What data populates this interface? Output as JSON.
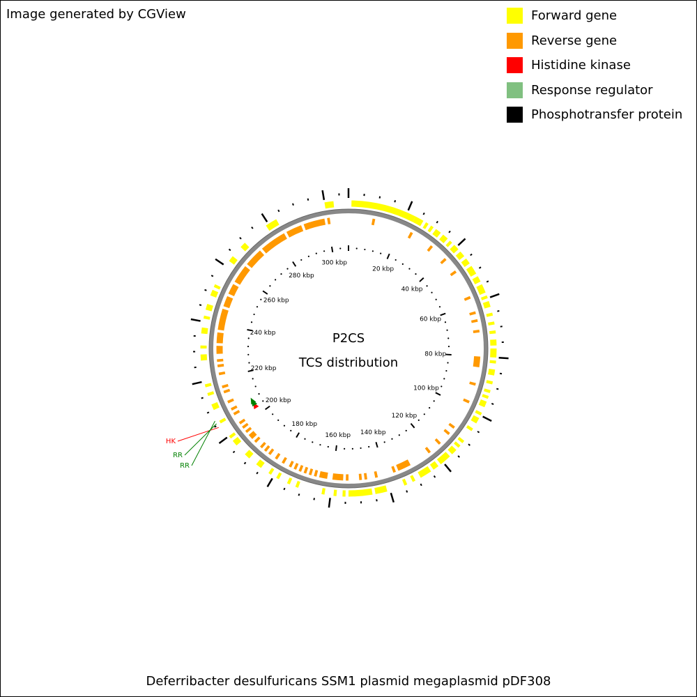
{
  "credit": "Image generated by CGView",
  "legend": [
    {
      "label": "Forward gene",
      "color": "#ffff00"
    },
    {
      "label": "Reverse gene",
      "color": "#ff9900"
    },
    {
      "label": "Histidine kinase",
      "color": "#ff0000"
    },
    {
      "label": "Response regulator",
      "color": "#80c080"
    },
    {
      "label": "Phosphotransfer protein",
      "color": "#000000"
    }
  ],
  "center_title": "P2CS",
  "center_subtitle": "TCS distribution",
  "organism": "Deferribacter desulfuricans SSM1 plasmid megaplasmid pDF308",
  "genome_length_kbp": 308,
  "ruler_labels": [
    "20 kbp",
    "40 kbp",
    "60 kbp",
    "80 kbp",
    "100 kbp",
    "120 kbp",
    "140 kbp",
    "160 kbp",
    "180 kbp",
    "200 kbp",
    "220 kbp",
    "240 kbp",
    "260 kbp",
    "280 kbp",
    "300 kbp"
  ],
  "callouts": [
    {
      "label": "HK",
      "color": "#ff0000"
    },
    {
      "label": "RR",
      "color": "#008000"
    },
    {
      "label": "RR",
      "color": "#008000"
    }
  ],
  "forward_genes_kbp": [
    [
      1,
      23
    ],
    [
      23,
      26
    ],
    [
      27,
      28
    ],
    [
      29,
      30
    ],
    [
      31,
      33
    ],
    [
      34,
      36
    ],
    [
      37,
      38
    ],
    [
      39,
      41
    ],
    [
      42,
      44
    ],
    [
      45,
      47
    ],
    [
      48,
      51
    ],
    [
      52,
      54
    ],
    [
      55,
      58
    ],
    [
      59,
      60
    ],
    [
      61,
      63
    ],
    [
      65,
      66
    ],
    [
      68,
      69
    ],
    [
      71,
      72
    ],
    [
      74,
      76
    ],
    [
      77,
      80
    ],
    [
      81,
      82
    ],
    [
      84,
      86
    ],
    [
      88,
      89
    ],
    [
      91,
      92
    ],
    [
      93,
      94
    ],
    [
      95,
      97
    ],
    [
      99,
      100
    ],
    [
      101,
      103
    ],
    [
      105,
      106
    ],
    [
      110,
      111
    ],
    [
      112,
      113
    ],
    [
      114,
      116
    ],
    [
      117,
      121
    ],
    [
      122,
      124
    ],
    [
      125,
      129
    ],
    [
      131,
      132
    ],
    [
      134,
      135
    ],
    [
      141,
      145
    ],
    [
      146,
      154
    ],
    [
      155,
      156
    ],
    [
      158,
      159
    ],
    [
      162,
      163
    ],
    [
      171,
      172
    ],
    [
      174,
      175
    ],
    [
      178,
      179
    ],
    [
      181,
      182
    ],
    [
      185,
      187
    ],
    [
      190,
      192
    ],
    [
      196,
      198
    ],
    [
      199,
      200
    ],
    [
      205,
      206
    ],
    [
      210,
      212
    ],
    [
      215,
      216
    ],
    [
      218,
      219
    ],
    [
      227,
      229
    ],
    [
      231,
      232
    ],
    [
      236,
      238
    ],
    [
      241,
      242
    ],
    [
      244,
      246
    ],
    [
      249,
      251
    ],
    [
      252,
      253
    ],
    [
      262,
      264
    ],
    [
      268,
      270
    ],
    [
      279,
      283
    ],
    [
      300,
      303
    ]
  ],
  "reverse_genes_kbp": [
    [
      9,
      10
    ],
    [
      24,
      25
    ],
    [
      33,
      34
    ],
    [
      40,
      41
    ],
    [
      46,
      47
    ],
    [
      57,
      58
    ],
    [
      63,
      64
    ],
    [
      66,
      67
    ],
    [
      70,
      71
    ],
    [
      80,
      84
    ],
    [
      90,
      91
    ],
    [
      97,
      98
    ],
    [
      108,
      109
    ],
    [
      111,
      112
    ],
    [
      116,
      117
    ],
    [
      121,
      122
    ],
    [
      130,
      135
    ],
    [
      136,
      137
    ],
    [
      143,
      144
    ],
    [
      147,
      148
    ],
    [
      149,
      150
    ],
    [
      154,
      155
    ],
    [
      156,
      160
    ],
    [
      162,
      165
    ],
    [
      166,
      167
    ],
    [
      168,
      169
    ],
    [
      170,
      171
    ],
    [
      172,
      173
    ],
    [
      174,
      175
    ],
    [
      176,
      177
    ],
    [
      179,
      180
    ],
    [
      182,
      183
    ],
    [
      185,
      186
    ],
    [
      187,
      188
    ],
    [
      189,
      190
    ],
    [
      192,
      193
    ],
    [
      194,
      196
    ],
    [
      197,
      198
    ],
    [
      199,
      200
    ],
    [
      201,
      202
    ],
    [
      205,
      206
    ],
    [
      207,
      208
    ],
    [
      210,
      211
    ],
    [
      214,
      215
    ],
    [
      216,
      217
    ],
    [
      221,
      222
    ],
    [
      224,
      225
    ],
    [
      226,
      227
    ],
    [
      229,
      232
    ],
    [
      233,
      237
    ],
    [
      238,
      246
    ],
    [
      247,
      251
    ],
    [
      252,
      256
    ],
    [
      257,
      264
    ],
    [
      265,
      272
    ],
    [
      273,
      283
    ],
    [
      284,
      290
    ],
    [
      291,
      299
    ],
    [
      300,
      301
    ]
  ],
  "tcs_genes": [
    {
      "kbp": 204.2,
      "type": "HK",
      "color": "#ff0000"
    },
    {
      "kbp": 205.6,
      "type": "RR",
      "color": "#008000"
    },
    {
      "kbp": 206.6,
      "type": "RR",
      "color": "#008000"
    }
  ]
}
